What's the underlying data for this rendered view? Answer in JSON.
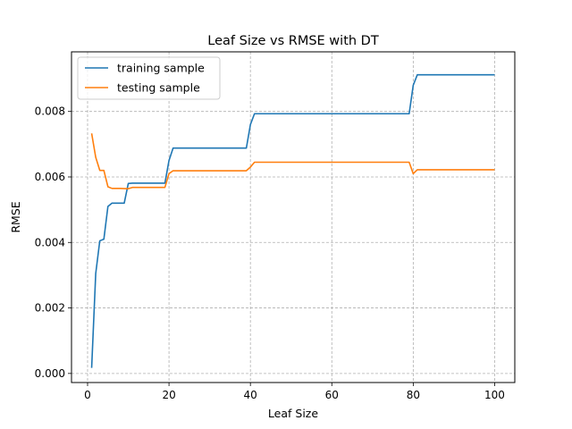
{
  "chart_data": {
    "type": "line",
    "title": "Leaf Size vs RMSE with DT",
    "xlabel": "Leaf Size",
    "ylabel": "RMSE",
    "xlim": [
      -3.95,
      104.95
    ],
    "ylim": [
      -0.000277,
      0.00982
    ],
    "x_ticks": [
      0,
      20,
      40,
      60,
      80,
      100
    ],
    "x_tick_labels": [
      "0",
      "20",
      "40",
      "60",
      "80",
      "100"
    ],
    "y_ticks": [
      0.0,
      0.002,
      0.004,
      0.006,
      0.008
    ],
    "y_tick_labels": [
      "0.000",
      "0.002",
      "0.004",
      "0.006",
      "0.008"
    ],
    "grid": true,
    "grid_style": "dashed",
    "legend_position": "top-left",
    "series": [
      {
        "name": "training sample",
        "color": "#1f77b4",
        "points": [
          [
            1,
            0.00017
          ],
          [
            2,
            0.00305
          ],
          [
            3,
            0.00405
          ],
          [
            4,
            0.0041
          ],
          [
            5,
            0.0051
          ],
          [
            6,
            0.0052
          ],
          [
            9,
            0.0052
          ],
          [
            10,
            0.0058
          ],
          [
            11,
            0.00581
          ],
          [
            19,
            0.00581
          ],
          [
            20,
            0.0065
          ],
          [
            21,
            0.00688
          ],
          [
            39,
            0.00688
          ],
          [
            40,
            0.0076
          ],
          [
            41,
            0.00793
          ],
          [
            79,
            0.00793
          ],
          [
            80,
            0.0088
          ],
          [
            81,
            0.00912
          ],
          [
            100,
            0.00912
          ]
        ]
      },
      {
        "name": "testing sample",
        "color": "#ff7f0e",
        "points": [
          [
            1,
            0.00733
          ],
          [
            2,
            0.0066
          ],
          [
            3,
            0.0062
          ],
          [
            4,
            0.0062
          ],
          [
            5,
            0.0057
          ],
          [
            6,
            0.00565
          ],
          [
            8,
            0.00565
          ],
          [
            10,
            0.00564
          ],
          [
            11,
            0.00568
          ],
          [
            19,
            0.00568
          ],
          [
            20,
            0.0061
          ],
          [
            21,
            0.00619
          ],
          [
            39,
            0.00619
          ],
          [
            40,
            0.0063
          ],
          [
            41,
            0.00645
          ],
          [
            79,
            0.00645
          ],
          [
            80,
            0.0061
          ],
          [
            81,
            0.00622
          ],
          [
            100,
            0.00622
          ]
        ]
      }
    ]
  }
}
